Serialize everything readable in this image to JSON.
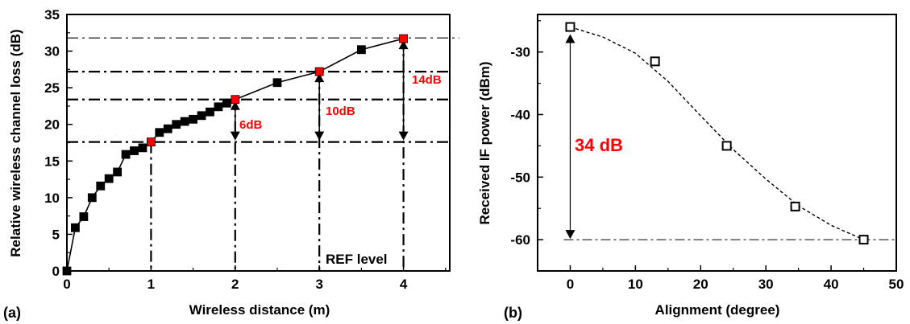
{
  "chart_data": [
    {
      "type": "line",
      "panel_label": "(a)",
      "xlabel": "Wireless distance (m)",
      "ylabel": "Relative wireless channel loss (dB)",
      "xlim": [
        0,
        4.55
      ],
      "ylim": [
        0,
        35
      ],
      "xticks": [
        "0",
        "1",
        "2",
        "3",
        "4"
      ],
      "yticks": [
        "0",
        "5",
        "10",
        "15",
        "20",
        "25",
        "30",
        "35"
      ],
      "series": [
        {
          "marker": "filled-square",
          "color": "#000000",
          "x": [
            0,
            0.1,
            0.2,
            0.3,
            0.4,
            0.5,
            0.6,
            0.7,
            0.8,
            0.9,
            1.0,
            1.1,
            1.2,
            1.3,
            1.4,
            1.5,
            1.6,
            1.7,
            1.8,
            1.9,
            2.0,
            2.5,
            3.0,
            3.5,
            4.0
          ],
          "y": [
            0,
            5.9,
            7.4,
            10.0,
            11.6,
            12.6,
            13.5,
            15.9,
            16.4,
            16.8,
            17.6,
            18.9,
            19.4,
            20.0,
            20.4,
            20.7,
            21.2,
            21.7,
            22.4,
            22.9,
            23.4,
            25.7,
            27.2,
            30.2,
            31.7
          ]
        }
      ],
      "highlighted_points": {
        "x": [
          1,
          2,
          3,
          4
        ],
        "y": [
          17.6,
          23.4,
          27.2,
          31.7
        ],
        "color": "#ff0000"
      },
      "reference_lines_y": [
        17.6,
        23.4,
        27.2,
        31.8
      ],
      "reference_lines_x": [
        1,
        2,
        3,
        4
      ],
      "annotations": [
        "6dB",
        "10dB",
        "14dB"
      ],
      "ref_label": "REF level",
      "annotation_color": "#ff0000"
    },
    {
      "type": "scatter",
      "panel_label": "(b)",
      "xlabel": "Alignment (degree)",
      "ylabel": "Received IF power (dBm)",
      "xlim": [
        -5,
        50
      ],
      "ylim": [
        -65,
        -24
      ],
      "xticks": [
        "0",
        "10",
        "20",
        "30",
        "40",
        "50"
      ],
      "yticks": [
        "-30",
        "-40",
        "-50",
        "-60"
      ],
      "series": [
        {
          "marker": "open-square",
          "color": "#000000",
          "x": [
            0,
            13,
            24,
            34.5,
            45
          ],
          "y": [
            -26,
            -31.5,
            -45,
            -54.7,
            -60
          ]
        }
      ],
      "fit_curve": {
        "style": "dashed",
        "x": [
          0,
          5,
          10,
          15,
          20,
          25,
          30,
          35,
          40,
          45
        ],
        "y": [
          -26,
          -27.6,
          -30.2,
          -34.7,
          -40.2,
          -45.6,
          -50.3,
          -54.6,
          -57.7,
          -60
        ]
      },
      "reference_line_y": -60,
      "annotation": "34 dB",
      "annotation_color": "#ff0000"
    }
  ]
}
